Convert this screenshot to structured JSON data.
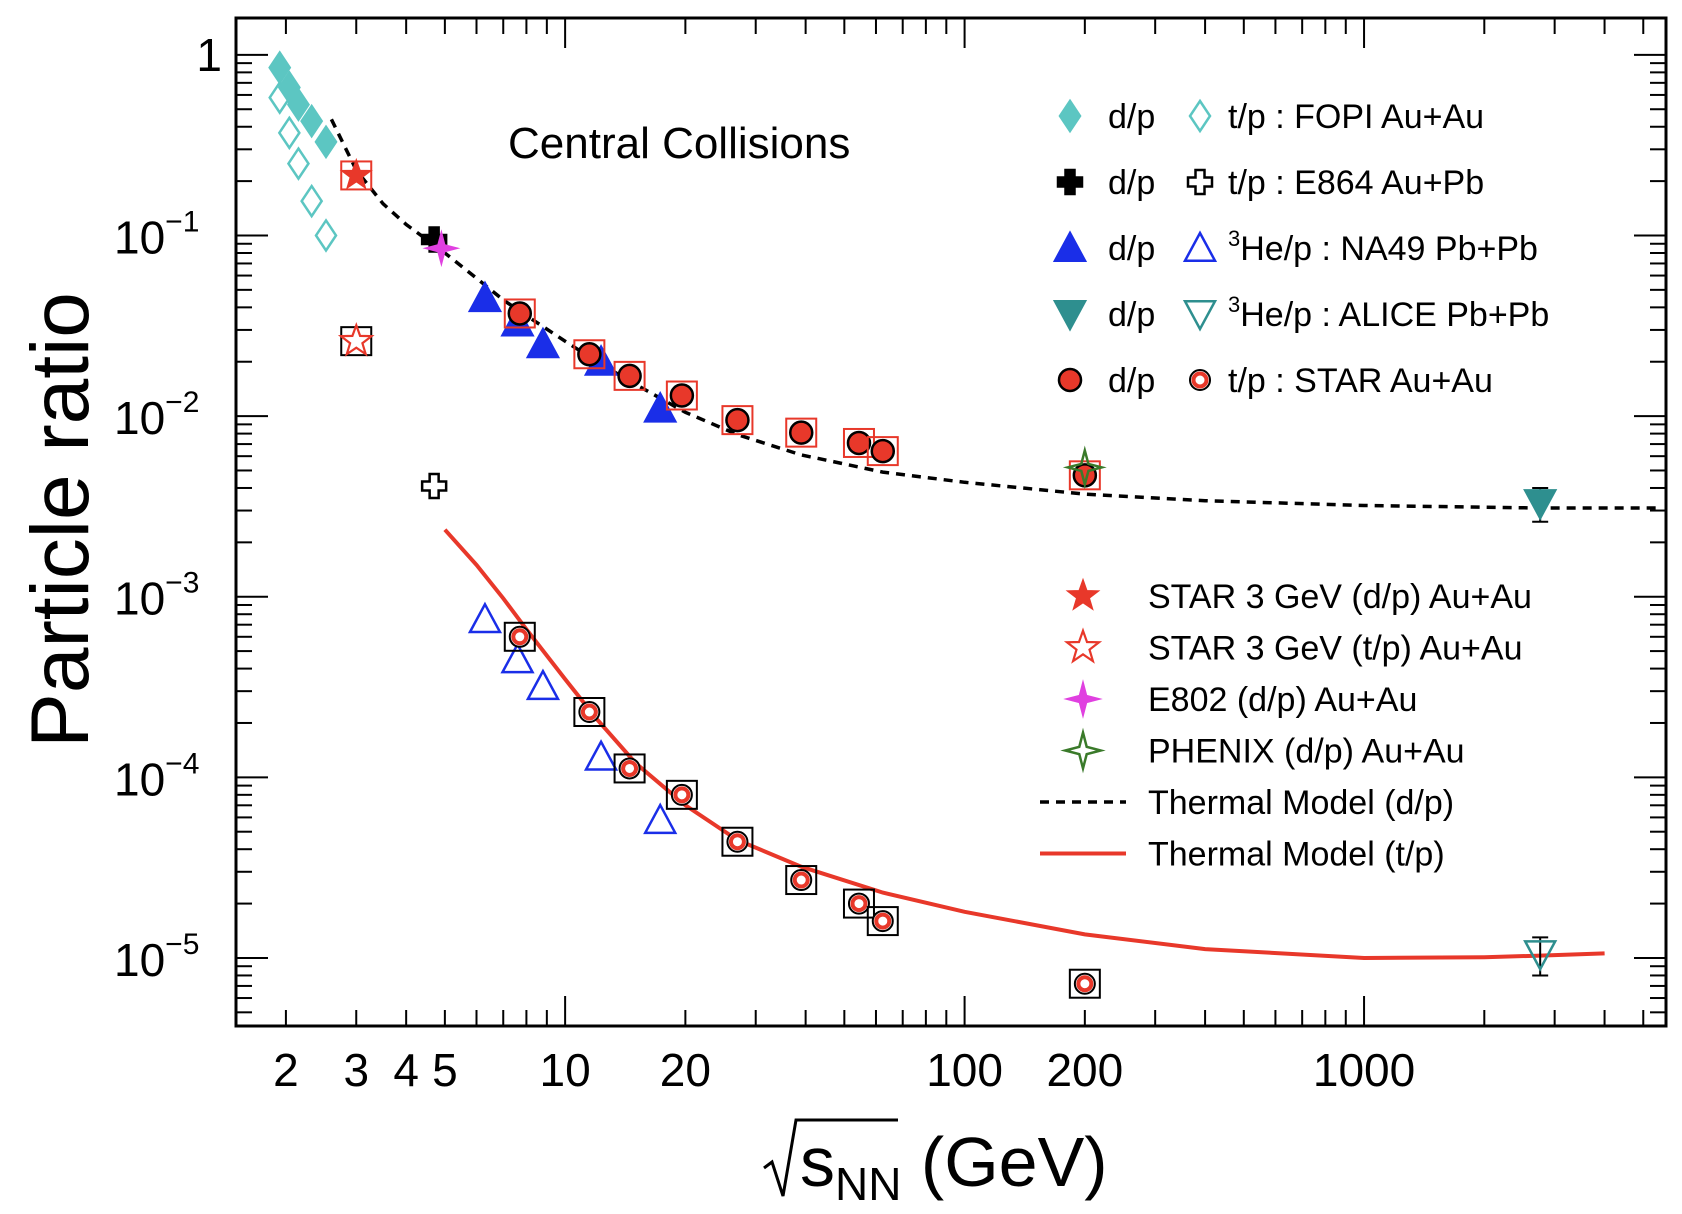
{
  "chart_data": {
    "type": "scatter",
    "ylabel": "Particle ratio",
    "xlabel_parts": {
      "radical": "√",
      "s": "s",
      "sub": "NN",
      "unit": " (GeV)"
    },
    "annotation": "Central Collisions",
    "x_scale": "log",
    "y_scale": "log",
    "xlim": [
      1.5,
      5700
    ],
    "ylim": [
      4.2e-06,
      1.6
    ],
    "x_ticks": [
      {
        "value": 2,
        "label": "2"
      },
      {
        "value": 3,
        "label": "3"
      },
      {
        "value": 4,
        "label": "4"
      },
      {
        "value": 5,
        "label": "5"
      },
      {
        "value": 10,
        "label": "10"
      },
      {
        "value": 20,
        "label": "20"
      },
      {
        "value": 100,
        "label": "100"
      },
      {
        "value": 200,
        "label": "200"
      },
      {
        "value": 1000,
        "label": "1000"
      }
    ],
    "y_ticks": [
      {
        "value": 1,
        "base": "1",
        "exp": ""
      },
      {
        "value": 0.1,
        "base": "10",
        "exp": "−1"
      },
      {
        "value": 0.01,
        "base": "10",
        "exp": "−2"
      },
      {
        "value": 0.001,
        "base": "10",
        "exp": "−3"
      },
      {
        "value": 0.0001,
        "base": "10",
        "exp": "−4"
      },
      {
        "value": 1e-05,
        "base": "10",
        "exp": "−5"
      }
    ],
    "grid": false,
    "legend_top_right": [
      {
        "label_a": "d/p",
        "label_b": "t/p : FOPI Au+Au",
        "sup": "",
        "marker_a": "diamond-filled",
        "marker_b": "diamond-open",
        "color": "#5cc6c2"
      },
      {
        "label_a": "d/p",
        "label_b": "t/p : E864 Au+Pb",
        "sup": "",
        "marker_a": "cross-filled",
        "marker_b": "cross-open",
        "color": "#000000"
      },
      {
        "label_a": "d/p",
        "label_b": "He/p : NA49 Pb+Pb",
        "sup": "3",
        "marker_a": "triangle-up-filled",
        "marker_b": "triangle-up-open",
        "color": "#1a2ee8"
      },
      {
        "label_a": "d/p",
        "label_b": "He/p : ALICE Pb+Pb",
        "sup": "3",
        "marker_a": "triangle-down-filled",
        "marker_b": "triangle-down-open",
        "color": "#2e8f8f"
      },
      {
        "label_a": "d/p",
        "label_b": "t/p : STAR Au+Au",
        "sup": "",
        "marker_a": "circle-filled",
        "marker_b": "circle-open",
        "color": "#e8382a"
      }
    ],
    "legend_bottom_right": [
      {
        "label": "STAR 3 GeV (d/p) Au+Au",
        "marker": "star-filled",
        "color": "#e8382a"
      },
      {
        "label": "STAR 3 GeV (t/p) Au+Au",
        "marker": "star-open",
        "color": "#e8382a"
      },
      {
        "label": "E802 (d/p) Au+Au",
        "marker": "star4-filled",
        "color": "#e040e0"
      },
      {
        "label": "PHENIX (d/p) Au+Au",
        "marker": "star4-open",
        "color": "#3a7a2a"
      },
      {
        "label": "Thermal Model (d/p)",
        "marker": "dashed-line",
        "color": "#000000"
      },
      {
        "label": "Thermal Model (t/p)",
        "marker": "solid-line",
        "color": "#e8382a"
      }
    ],
    "series": [
      {
        "name": "FOPI d/p",
        "marker": "diamond-filled",
        "color": "#5cc6c2",
        "x": [
          1.93,
          2.04,
          2.15,
          2.32,
          2.52
        ],
        "y": [
          0.85,
          0.66,
          0.53,
          0.43,
          0.33
        ]
      },
      {
        "name": "FOPI t/p",
        "marker": "diamond-open",
        "color": "#5cc6c2",
        "x": [
          1.93,
          2.04,
          2.15,
          2.32,
          2.52
        ],
        "y": [
          0.58,
          0.37,
          0.25,
          0.155,
          0.1
        ]
      },
      {
        "name": "E864 d/p",
        "marker": "cross-filled",
        "color": "#000000",
        "x": [
          4.7
        ],
        "y": [
          0.095
        ]
      },
      {
        "name": "E864 t/p",
        "marker": "cross-open",
        "color": "#000000",
        "x": [
          4.7
        ],
        "y": [
          0.0041
        ]
      },
      {
        "name": "NA49 d/p",
        "marker": "triangle-up-filled",
        "color": "#1a2ee8",
        "x": [
          6.3,
          7.6,
          8.8,
          12.3,
          17.3
        ],
        "y": [
          0.045,
          0.033,
          0.025,
          0.02,
          0.011
        ]
      },
      {
        "name": "NA49 3He/p",
        "marker": "triangle-up-open",
        "color": "#1a2ee8",
        "x": [
          6.3,
          7.6,
          8.8,
          12.3,
          17.3
        ],
        "y": [
          0.00075,
          0.00045,
          0.00032,
          0.00013,
          5.8e-05
        ]
      },
      {
        "name": "ALICE d/p",
        "marker": "triangle-down-filled",
        "color": "#2e8f8f",
        "x": [
          2760
        ],
        "y": [
          0.0033
        ],
        "err": [
          0.0007
        ]
      },
      {
        "name": "ALICE 3He/p",
        "marker": "triangle-down-open",
        "color": "#2e8f8f",
        "x": [
          2760
        ],
        "y": [
          1.05e-05
        ],
        "err": [
          2.5e-06
        ]
      },
      {
        "name": "STAR d/p",
        "marker": "circle-filled",
        "color": "#e8382a",
        "x": [
          7.7,
          11.5,
          14.5,
          19.6,
          27,
          39,
          54.4,
          62.4,
          200
        ],
        "y": [
          0.037,
          0.022,
          0.0167,
          0.013,
          0.0095,
          0.0081,
          0.0071,
          0.0064,
          0.0047
        ]
      },
      {
        "name": "STAR t/p",
        "marker": "circle-open",
        "color": "#e8382a",
        "x": [
          7.7,
          11.5,
          14.5,
          19.6,
          27,
          39,
          54.4,
          62.4,
          200
        ],
        "y": [
          0.0006,
          0.00023,
          0.000112,
          8e-05,
          4.4e-05,
          2.7e-05,
          2e-05,
          1.6e-05,
          7.2e-06
        ]
      },
      {
        "name": "STAR 3 GeV (d/p) Au+Au",
        "marker": "star-filled",
        "color": "#e8382a",
        "x": [
          3.0
        ],
        "y": [
          0.215
        ]
      },
      {
        "name": "STAR 3 GeV (t/p) Au+Au",
        "marker": "star-open",
        "color": "#e8382a",
        "x": [
          3.0
        ],
        "y": [
          0.026
        ]
      },
      {
        "name": "E802 (d/p) Au+Au",
        "marker": "star4-filled",
        "color": "#e040e0",
        "x": [
          4.9
        ],
        "y": [
          0.085
        ]
      },
      {
        "name": "PHENIX (d/p) Au+Au",
        "marker": "star4-open",
        "color": "#3a7a2a",
        "x": [
          200
        ],
        "y": [
          0.0052
        ]
      }
    ],
    "curves": [
      {
        "name": "Thermal Model (d/p)",
        "style": "dashed",
        "color": "#000000",
        "x": [
          2.6,
          3.0,
          3.5,
          4.0,
          4.5,
          5.0,
          6.0,
          7.0,
          8.0,
          10,
          12,
          15,
          20,
          27,
          39,
          62.4,
          100,
          200,
          400,
          1000,
          2760,
          5500
        ],
        "y": [
          0.44,
          0.23,
          0.15,
          0.115,
          0.095,
          0.08,
          0.058,
          0.044,
          0.036,
          0.026,
          0.02,
          0.015,
          0.0105,
          0.0079,
          0.0061,
          0.0049,
          0.0043,
          0.0037,
          0.0034,
          0.0032,
          0.0031,
          0.0031
        ]
      },
      {
        "name": "Thermal Model (t/p)",
        "style": "solid",
        "color": "#e8382a",
        "x": [
          5.0,
          6.0,
          7.0,
          8.0,
          10,
          12,
          15,
          20,
          27,
          39,
          62.4,
          100,
          200,
          400,
          1000,
          2000,
          2760,
          4000
        ],
        "y": [
          0.00235,
          0.0015,
          0.00098,
          0.00066,
          0.00035,
          0.00021,
          0.00012,
          7e-05,
          4.5e-05,
          3.2e-05,
          2.3e-05,
          1.8e-05,
          1.35e-05,
          1.12e-05,
          1e-05,
          1.01e-05,
          1.03e-05,
          1.06e-05
        ]
      }
    ]
  }
}
